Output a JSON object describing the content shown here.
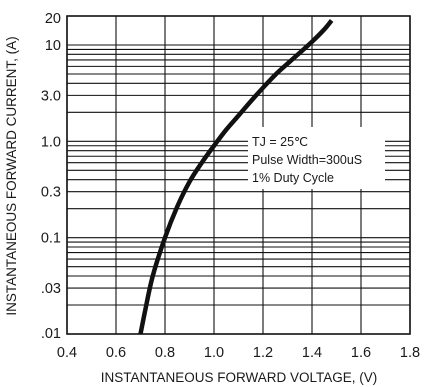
{
  "chart_data": {
    "type": "line",
    "title": "",
    "xlabel": "INSTANTANEOUS FORWARD VOLTAGE, (V)",
    "ylabel": "INSTANTANEOUS FORWARD CURRENT, (A)",
    "xlim": [
      0.4,
      1.8
    ],
    "ylim": [
      0.01,
      20
    ],
    "yscale": "log",
    "grid": true,
    "x_ticks": [
      0.4,
      0.6,
      0.8,
      1.0,
      1.2,
      1.4,
      1.6,
      1.8
    ],
    "x_tick_labels": [
      "0.4",
      "0.6",
      "0.8",
      "1.0",
      "1.2",
      "1.4",
      "1.6",
      "1.8"
    ],
    "y_ticks": [
      0.01,
      0.03,
      0.1,
      0.3,
      1.0,
      3.0,
      10,
      20
    ],
    "y_tick_labels": [
      ".01",
      ".03",
      "0.1",
      "0.3",
      "1.0",
      "3.0",
      "10",
      "20"
    ],
    "x_grid": [
      0.4,
      0.6,
      0.8,
      1.0,
      1.2,
      1.4,
      1.6,
      1.8
    ],
    "y_grid": [
      0.02,
      0.03,
      0.04,
      0.05,
      0.06,
      0.07,
      0.08,
      0.09,
      0.1,
      0.2,
      0.3,
      0.4,
      0.5,
      0.6,
      0.7,
      0.8,
      0.9,
      1,
      2,
      3,
      4,
      5,
      6,
      7,
      8,
      9,
      10
    ],
    "series": [
      {
        "x": [
          0.7,
          0.72,
          0.75,
          0.8,
          0.85,
          0.9,
          0.95,
          1.0,
          1.05,
          1.1,
          1.15,
          1.2,
          1.25,
          1.3,
          1.35,
          1.4,
          1.45,
          1.48
        ],
        "y": [
          0.01,
          0.018,
          0.04,
          0.1,
          0.21,
          0.38,
          0.6,
          0.9,
          1.32,
          1.85,
          2.6,
          3.6,
          4.9,
          6.4,
          8.3,
          10.8,
          14.5,
          18
        ]
      }
    ],
    "annotations": [
      "TJ = 25℃",
      "Pulse Width=300uS",
      "1% Duty Cycle"
    ]
  }
}
